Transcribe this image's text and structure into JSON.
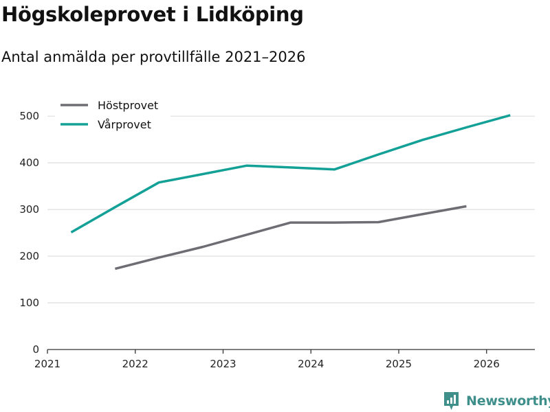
{
  "chart_data": {
    "type": "line",
    "title": "Högskoleprovet i Lidköping",
    "subtitle": "Antal anmälda per provtillfälle 2021–2026",
    "xlabel": "",
    "ylabel": "",
    "xlim": [
      2021,
      2026.55
    ],
    "ylim": [
      0,
      540
    ],
    "x_ticks": [
      "2021",
      "2022",
      "2023",
      "2024",
      "2025",
      "2026"
    ],
    "y_ticks": [
      "0",
      "100",
      "200",
      "300",
      "400",
      "500"
    ],
    "grid": true,
    "legend_position": "top-left",
    "series": [
      {
        "name": "Höstprovet",
        "color": "#6e6d74",
        "x": [
          2021.77,
          2022.27,
          2022.77,
          2023.27,
          2023.77,
          2024.27,
          2024.77,
          2025.27,
          2025.77
        ],
        "values": [
          173,
          197,
          220,
          246,
          272,
          272,
          273,
          290,
          307
        ]
      },
      {
        "name": "Vårprovet",
        "color": "#13a096",
        "x": [
          2021.27,
          2021.77,
          2022.27,
          2022.77,
          2023.27,
          2023.77,
          2024.27,
          2024.77,
          2025.27,
          2025.77,
          2026.27
        ],
        "values": [
          251,
          305,
          358,
          376,
          394,
          390,
          386,
          418,
          449,
          476,
          502
        ]
      }
    ]
  },
  "brand": {
    "name": "Newsworthy",
    "color": "#3e8e8a"
  }
}
